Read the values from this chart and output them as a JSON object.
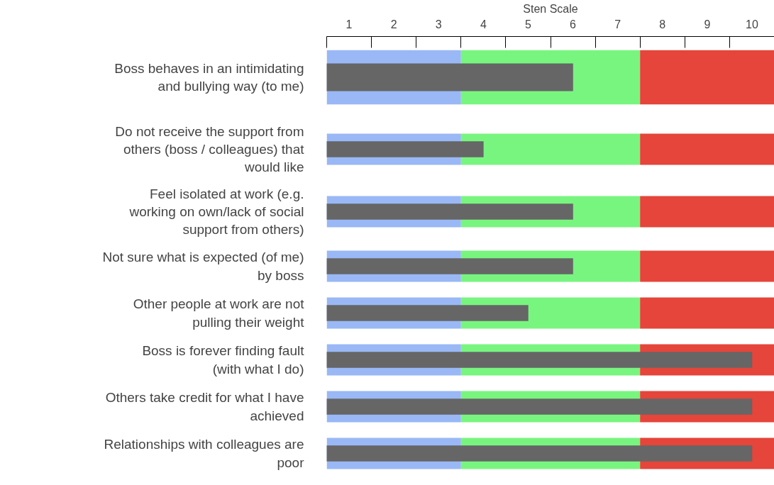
{
  "chart_data": [
    {
      "type": "bar",
      "orientation": "horizontal",
      "xlabel": "Sten Scale",
      "categories": [
        "Boss behaves in an intimidating and bullying way (to me)"
      ],
      "values": [
        6
      ],
      "color": "#666666",
      "xlim": [
        0.5,
        10.5
      ],
      "xticks": [
        {
          "value": 0.5,
          "label": null
        },
        1,
        {
          "value": 1.5,
          "label": null
        },
        2,
        {
          "value": 2.5,
          "label": null
        },
        3,
        {
          "value": 3.5,
          "label": null
        },
        4,
        {
          "value": 4.5,
          "label": null
        },
        5,
        {
          "value": 5.5,
          "label": null
        },
        6,
        {
          "value": 6.5,
          "label": null
        },
        7,
        {
          "value": 7.5,
          "label": null
        },
        8,
        {
          "value": 8.5,
          "label": null
        },
        9,
        {
          "value": 9.5,
          "label": null
        },
        10,
        {
          "value": 10.5,
          "label": null
        }
      ],
      "bands": [
        {
          "axis": "x",
          "from": 0.5,
          "to": 3.5,
          "color": "#99b8f5"
        },
        {
          "axis": "x",
          "from": 3.5,
          "to": 7.5,
          "color": "#78f57f"
        },
        {
          "axis": "x",
          "from": 7.5,
          "to": 10.5,
          "color": "#e5453a"
        }
      ],
      "grid": false,
      "legend": false
    },
    {
      "type": "bar",
      "orientation": "horizontal",
      "categories": [
        "Do not receive the support from others (boss / colleagues) that would like"
      ],
      "values": [
        4
      ],
      "color": "#666666",
      "xlim": [
        0.5,
        10.5
      ],
      "bands": [
        {
          "axis": "x",
          "from": 0.5,
          "to": 3.5,
          "color": "#99b8f5"
        },
        {
          "axis": "x",
          "from": 3.5,
          "to": 7.5,
          "color": "#78f57f"
        },
        {
          "axis": "x",
          "from": 7.5,
          "to": 10.5,
          "color": "#e5453a"
        }
      ],
      "grid": false,
      "legend": false,
      "tick_labels": "y"
    },
    {
      "type": "bar",
      "orientation": "horizontal",
      "categories": [
        "Feel isolated at work (e.g. working on own/lack of social support from others)"
      ],
      "values": [
        6
      ],
      "color": "#666666",
      "xlim": [
        0.5,
        10.5
      ],
      "bands": [
        {
          "axis": "x",
          "from": 0.5,
          "to": 3.5,
          "color": "#99b8f5"
        },
        {
          "axis": "x",
          "from": 3.5,
          "to": 7.5,
          "color": "#78f57f"
        },
        {
          "axis": "x",
          "from": 7.5,
          "to": 10.5,
          "color": "#e5453a"
        }
      ],
      "grid": false,
      "legend": false,
      "tick_labels": "y"
    },
    {
      "type": "bar",
      "orientation": "horizontal",
      "categories": [
        "Not sure what is expected (of me) by boss"
      ],
      "values": [
        6
      ],
      "color": "#666666",
      "xlim": [
        0.5,
        10.5
      ],
      "bands": [
        {
          "axis": "x",
          "from": 0.5,
          "to": 3.5,
          "color": "#99b8f5"
        },
        {
          "axis": "x",
          "from": 3.5,
          "to": 7.5,
          "color": "#78f57f"
        },
        {
          "axis": "x",
          "from": 7.5,
          "to": 10.5,
          "color": "#e5453a"
        }
      ],
      "grid": false,
      "legend": false,
      "tick_labels": "y"
    },
    {
      "type": "bar",
      "orientation": "horizontal",
      "categories": [
        "Other people at work are not pulling their weight"
      ],
      "values": [
        5
      ],
      "color": "#666666",
      "xlim": [
        0.5,
        10.5
      ],
      "bands": [
        {
          "axis": "x",
          "from": 0.5,
          "to": 3.5,
          "color": "#99b8f5"
        },
        {
          "axis": "x",
          "from": 3.5,
          "to": 7.5,
          "color": "#78f57f"
        },
        {
          "axis": "x",
          "from": 7.5,
          "to": 10.5,
          "color": "#e5453a"
        }
      ],
      "grid": false,
      "legend": false,
      "tick_labels": "y"
    },
    {
      "type": "bar",
      "orientation": "horizontal",
      "categories": [
        "Boss is forever finding fault (with what I do)"
      ],
      "values": [
        10
      ],
      "color": "#666666",
      "xlim": [
        0.5,
        10.5
      ],
      "bands": [
        {
          "axis": "x",
          "from": 0.5,
          "to": 3.5,
          "color": "#99b8f5"
        },
        {
          "axis": "x",
          "from": 3.5,
          "to": 7.5,
          "color": "#78f57f"
        },
        {
          "axis": "x",
          "from": 7.5,
          "to": 10.5,
          "color": "#e5453a"
        }
      ],
      "grid": false,
      "legend": false,
      "tick_labels": "y"
    },
    {
      "type": "bar",
      "orientation": "horizontal",
      "categories": [
        "Others take credit for what I have achieved"
      ],
      "values": [
        10
      ],
      "color": "#666666",
      "xlim": [
        0.5,
        10.5
      ],
      "bands": [
        {
          "axis": "x",
          "from": 0.5,
          "to": 3.5,
          "color": "#99b8f5"
        },
        {
          "axis": "x",
          "from": 3.5,
          "to": 7.5,
          "color": "#78f57f"
        },
        {
          "axis": "x",
          "from": 7.5,
          "to": 10.5,
          "color": "#e5453a"
        }
      ],
      "grid": false,
      "legend": false,
      "tick_labels": "y"
    },
    {
      "type": "bar",
      "orientation": "horizontal",
      "categories": [
        "Relationships with colleagues are poor"
      ],
      "values": [
        10
      ],
      "color": "#666666",
      "xlim": [
        0.5,
        10.5
      ],
      "bands": [
        {
          "axis": "x",
          "from": 0.5,
          "to": 3.5,
          "color": "#99b8f5"
        },
        {
          "axis": "x",
          "from": 3.5,
          "to": 7.5,
          "color": "#78f57f"
        },
        {
          "axis": "x",
          "from": 7.5,
          "to": 10.5,
          "color": "#e5453a"
        }
      ],
      "grid": false,
      "legend": false,
      "tick_labels": "y"
    }
  ]
}
